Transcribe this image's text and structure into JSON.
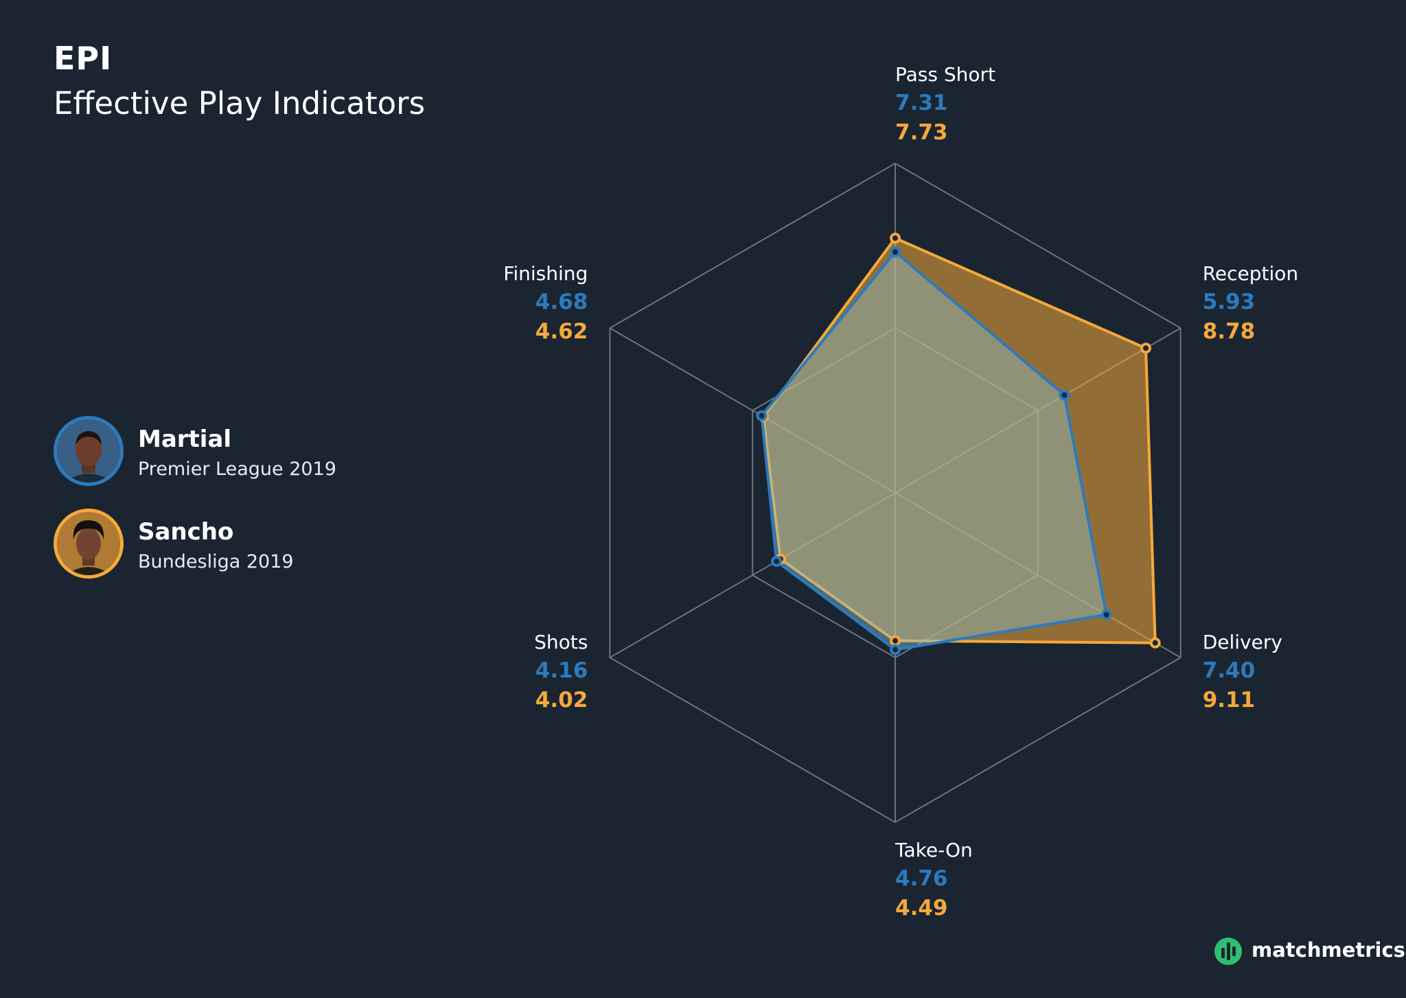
{
  "header": {
    "title": "EPI",
    "subtitle": "Effective Play Indicators"
  },
  "players": [
    {
      "name": "Martial",
      "league": "Premier League 2019",
      "color": "#2b7bbf"
    },
    {
      "name": "Sancho",
      "league": "Bundesliga 2019",
      "color": "#f5a93a"
    }
  ],
  "chart_data": {
    "type": "radar",
    "axes": [
      "Pass Short",
      "Reception",
      "Delivery",
      "Take-On",
      "Shots",
      "Finishing"
    ],
    "range": [
      0,
      10
    ],
    "grid_levels": [
      5,
      10
    ],
    "series": [
      {
        "name": "Martial",
        "values": [
          7.31,
          5.93,
          7.4,
          4.76,
          4.16,
          4.68
        ],
        "labels": [
          "7.31",
          "5.93",
          "7.40",
          "4.76",
          "4.16",
          "4.68"
        ]
      },
      {
        "name": "Sancho",
        "values": [
          7.73,
          8.78,
          9.11,
          4.49,
          4.02,
          4.62
        ],
        "labels": [
          "7.73",
          "8.78",
          "9.11",
          "4.49",
          "4.02",
          "4.62"
        ]
      }
    ]
  },
  "brand": {
    "name": "matchmetrics"
  },
  "colors": {
    "background": "#1b2532",
    "grid": "#6b7580",
    "martial": "#2b7bbf",
    "sancho": "#f5a93a",
    "brand": "#2fbf71"
  }
}
